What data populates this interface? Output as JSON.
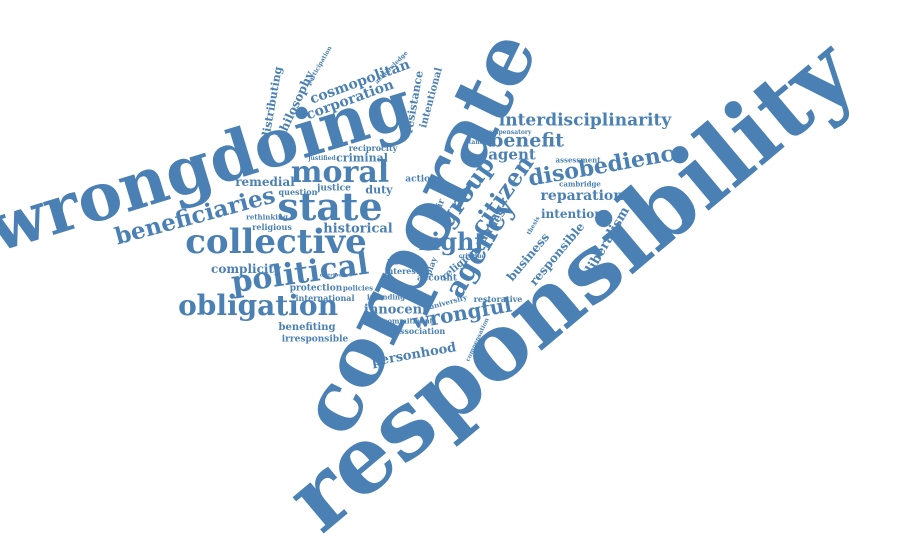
{
  "color": "#4a80b4",
  "words": [
    "responsibility",
    "corporate",
    "wrongdoing",
    "collective",
    "state",
    "moral",
    "political",
    "obligation",
    "beneficiaries",
    "agency",
    "group",
    "right",
    "disobedience",
    "interdisciplinarity",
    "benefit",
    "citizen",
    "wrongful",
    "reparation",
    "intention",
    "liberalism",
    "responsible",
    "business",
    "agent",
    "historical",
    "complicity",
    "remedial",
    "innocent",
    "personhood",
    "religion",
    "corporation",
    "cosmopolitan",
    "philosophy",
    "distributing",
    "resistance",
    "intentional",
    "criminal",
    "justice",
    "duty",
    "action",
    "reciprocity",
    "religious",
    "rethinking",
    "question",
    "protection",
    "international",
    "benefiting",
    "irresponsible",
    "association",
    "interest",
    "account",
    "restorative",
    "cambridge",
    "assessment",
    "duties",
    "commitment",
    "university",
    "intending",
    "laborde",
    "policies",
    "compensation",
    "compensatory",
    "standing",
    "justified",
    "critique",
    "play",
    "fair",
    "distributive",
    "acknowledge",
    "participation",
    "thesis"
  ]
}
